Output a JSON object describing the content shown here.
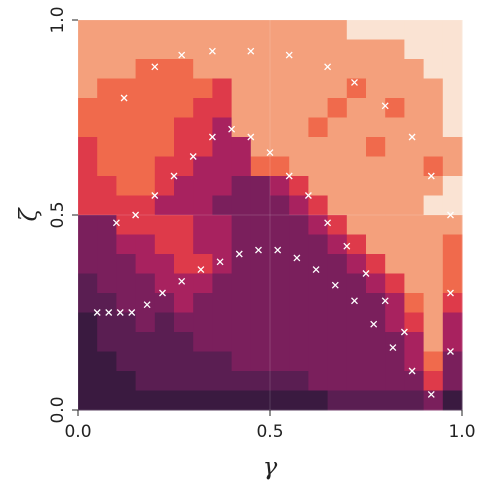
{
  "chart_data": {
    "type": "heatmap",
    "x_label": "γ",
    "y_label": "ζ",
    "xlim": [
      0,
      1
    ],
    "ylim": [
      0,
      1
    ],
    "xticks": [
      {
        "value": 0,
        "label": "0.0"
      },
      {
        "value": 0.5,
        "label": "0.5"
      },
      {
        "value": 1,
        "label": "1.0"
      }
    ],
    "yticks": [
      {
        "value": 0,
        "label": "0.0"
      },
      {
        "value": 0.5,
        "label": "0.5"
      },
      {
        "value": 1,
        "label": "1.0"
      }
    ],
    "grid": true,
    "colors": [
      "#3a1a40",
      "#5a1e52",
      "#7a1f5c",
      "#a8225f",
      "#de3a4a",
      "#f06a4c",
      "#f4a07c",
      "#fae3d3"
    ],
    "marker_color": "#ffffff",
    "z": [
      [
        6,
        6,
        6,
        6,
        6,
        6,
        6,
        6,
        6,
        6,
        6,
        6,
        6,
        6,
        7,
        7,
        7,
        7,
        7,
        7
      ],
      [
        6,
        6,
        6,
        6,
        6,
        6,
        6,
        6,
        6,
        6,
        6,
        6,
        6,
        6,
        6,
        6,
        6,
        7,
        7,
        7
      ],
      [
        6,
        6,
        6,
        5,
        5,
        5,
        6,
        6,
        6,
        6,
        6,
        6,
        6,
        6,
        6,
        6,
        6,
        6,
        7,
        7
      ],
      [
        6,
        5,
        5,
        5,
        5,
        5,
        5,
        4,
        6,
        6,
        6,
        6,
        6,
        6,
        5,
        6,
        6,
        6,
        6,
        7
      ],
      [
        5,
        5,
        5,
        5,
        5,
        5,
        4,
        4,
        6,
        6,
        6,
        6,
        6,
        5,
        6,
        6,
        5,
        6,
        6,
        7
      ],
      [
        5,
        5,
        5,
        5,
        5,
        4,
        4,
        3,
        6,
        6,
        6,
        6,
        5,
        6,
        6,
        6,
        6,
        6,
        6,
        7
      ],
      [
        4,
        5,
        5,
        5,
        5,
        4,
        4,
        3,
        3,
        6,
        6,
        6,
        6,
        6,
        6,
        5,
        6,
        6,
        6,
        6
      ],
      [
        4,
        5,
        5,
        5,
        4,
        4,
        3,
        3,
        3,
        5,
        5,
        6,
        6,
        6,
        6,
        6,
        6,
        6,
        5,
        6
      ],
      [
        4,
        4,
        5,
        5,
        4,
        3,
        3,
        3,
        2,
        2,
        3,
        4,
        6,
        6,
        6,
        6,
        6,
        6,
        6,
        7
      ],
      [
        4,
        4,
        4,
        4,
        3,
        3,
        3,
        2,
        2,
        2,
        2,
        3,
        4,
        6,
        6,
        6,
        6,
        6,
        7,
        7
      ],
      [
        2,
        2,
        4,
        4,
        4,
        4,
        3,
        3,
        2,
        2,
        2,
        2,
        3,
        4,
        6,
        6,
        6,
        6,
        6,
        6
      ],
      [
        2,
        2,
        3,
        3,
        4,
        4,
        3,
        3,
        2,
        2,
        2,
        2,
        2,
        3,
        4,
        6,
        6,
        6,
        6,
        5
      ],
      [
        2,
        2,
        2,
        3,
        3,
        4,
        4,
        3,
        2,
        2,
        2,
        2,
        2,
        2,
        3,
        4,
        6,
        6,
        6,
        5
      ],
      [
        1,
        2,
        2,
        2,
        3,
        3,
        3,
        2,
        2,
        2,
        2,
        2,
        2,
        2,
        2,
        3,
        4,
        6,
        6,
        5
      ],
      [
        1,
        1,
        2,
        2,
        2,
        3,
        2,
        2,
        2,
        2,
        2,
        2,
        2,
        2,
        2,
        2,
        3,
        5,
        6,
        4
      ],
      [
        0,
        1,
        1,
        2,
        1,
        2,
        2,
        2,
        2,
        2,
        2,
        2,
        2,
        2,
        2,
        2,
        3,
        4,
        6,
        3
      ],
      [
        0,
        1,
        1,
        1,
        1,
        1,
        2,
        2,
        2,
        2,
        2,
        2,
        2,
        2,
        2,
        2,
        2,
        3,
        6,
        3
      ],
      [
        0,
        0,
        1,
        1,
        1,
        1,
        1,
        1,
        2,
        2,
        2,
        2,
        2,
        2,
        2,
        2,
        2,
        3,
        5,
        2
      ],
      [
        0,
        0,
        0,
        1,
        1,
        1,
        1,
        1,
        1,
        1,
        1,
        1,
        2,
        2,
        2,
        2,
        2,
        2,
        4,
        2
      ],
      [
        0,
        0,
        0,
        0,
        0,
        0,
        0,
        0,
        0,
        0,
        0,
        0,
        0,
        1,
        1,
        1,
        1,
        1,
        2,
        0
      ]
    ],
    "markers": {
      "x": [
        0.05,
        0.08,
        0.11,
        0.14,
        0.18,
        0.22,
        0.27,
        0.32,
        0.37,
        0.42,
        0.47,
        0.52,
        0.57,
        0.62,
        0.67,
        0.72,
        0.77,
        0.82,
        0.87,
        0.92,
        0.1,
        0.15,
        0.2,
        0.25,
        0.3,
        0.35,
        0.4,
        0.45,
        0.5,
        0.55,
        0.6,
        0.65,
        0.7,
        0.75,
        0.8,
        0.85,
        0.12,
        0.2,
        0.27,
        0.35,
        0.45,
        0.55,
        0.65,
        0.72,
        0.8,
        0.87,
        0.92,
        0.97,
        0.97,
        0.97
      ],
      "y": [
        0.25,
        0.25,
        0.25,
        0.25,
        0.27,
        0.3,
        0.33,
        0.36,
        0.38,
        0.4,
        0.41,
        0.41,
        0.39,
        0.36,
        0.32,
        0.28,
        0.22,
        0.16,
        0.1,
        0.04,
        0.48,
        0.5,
        0.55,
        0.6,
        0.65,
        0.7,
        0.72,
        0.7,
        0.66,
        0.6,
        0.55,
        0.48,
        0.42,
        0.35,
        0.28,
        0.2,
        0.8,
        0.88,
        0.91,
        0.92,
        0.92,
        0.91,
        0.88,
        0.84,
        0.78,
        0.7,
        0.6,
        0.5,
        0.3,
        0.15
      ]
    }
  }
}
